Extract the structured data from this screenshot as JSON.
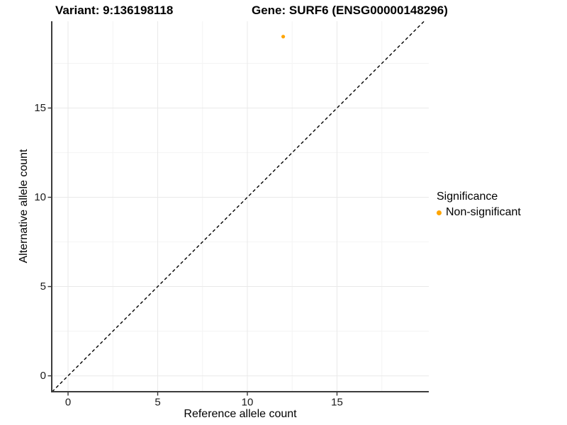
{
  "chart_data": {
    "type": "scatter",
    "titles": {
      "left": "Variant: 9:136198118",
      "right": "Gene: SURF6 (ENSG00000148296)"
    },
    "xlabel": "Reference allele count",
    "ylabel": "Alternative allele count",
    "xlim": [
      -0.91,
      20.12
    ],
    "ylim": [
      -0.89,
      19.86
    ],
    "x_ticks": [
      0,
      5,
      10,
      15
    ],
    "y_ticks": [
      0,
      5,
      10,
      15
    ],
    "x_minor": [
      2.5,
      7.5,
      12.5,
      17.5
    ],
    "y_minor": [
      2.5,
      7.5,
      12.5,
      17.5
    ],
    "grid": true,
    "series": [
      {
        "name": "Non-significant",
        "color": "#FFA500",
        "points": [
          {
            "x": 12,
            "y": 19
          }
        ]
      }
    ],
    "reference_line": {
      "type": "identity",
      "equation": "y = x",
      "style": "dashed",
      "color": "#000000"
    },
    "legend": {
      "title": "Significance",
      "position": "right",
      "items": [
        {
          "label": "Non-significant",
          "color": "#FFA500"
        }
      ]
    },
    "colors": {
      "background": "#ffffff",
      "grid_major": "#e9e9e9",
      "grid_minor": "#f4f4f4",
      "axis_line": "#3c3c3c",
      "tick_mark": "#333333",
      "tick_label": "#1a1a1a"
    }
  }
}
